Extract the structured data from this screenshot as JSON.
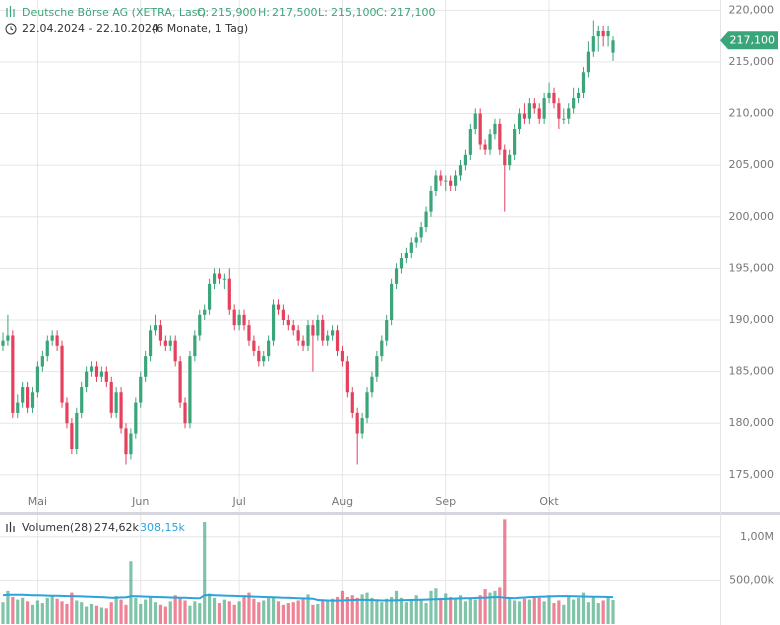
{
  "header": {
    "title": "Deutsche Börse AG (XETRA, Last)",
    "open_label": "O:",
    "open": "215,900",
    "high_label": "H:",
    "high": "217,500",
    "low_label": "L:",
    "low": "215,100",
    "close_label": "C:",
    "close": "217,100",
    "range": "22.04.2024 - 22.10.2024",
    "period": "(6 Monate, 1 Tag)"
  },
  "chart_data": [
    {
      "type": "candlestick",
      "up_color": "#3ba57a",
      "down_color": "#e5405c",
      "grid": true,
      "last_price_label": "217,100",
      "categories": [
        null,
        null,
        null,
        null,
        null,
        null,
        null,
        "Mai",
        null,
        null,
        null,
        null,
        null,
        null,
        null,
        null,
        null,
        null,
        null,
        null,
        null,
        null,
        null,
        null,
        null,
        null,
        null,
        null,
        "Jun",
        null,
        null,
        null,
        null,
        null,
        null,
        null,
        null,
        null,
        null,
        null,
        null,
        null,
        null,
        null,
        null,
        null,
        null,
        null,
        "Jul",
        null,
        null,
        null,
        null,
        null,
        null,
        null,
        null,
        null,
        null,
        null,
        null,
        null,
        null,
        null,
        null,
        null,
        null,
        null,
        null,
        "Aug",
        null,
        null,
        null,
        null,
        null,
        null,
        null,
        null,
        null,
        null,
        null,
        null,
        null,
        null,
        null,
        null,
        null,
        null,
        null,
        null,
        "Sep",
        null,
        null,
        null,
        null,
        null,
        null,
        null,
        null,
        null,
        null,
        null,
        null,
        null,
        null,
        null,
        null,
        null,
        null,
        null,
        null,
        "Okt",
        null,
        null,
        null,
        null,
        null,
        null,
        null,
        null,
        null,
        null,
        null,
        null,
        null
      ],
      "open": [
        187500,
        188000,
        188500,
        181000,
        182000,
        183500,
        181500,
        183000,
        185500,
        186500,
        188000,
        188500,
        187500,
        182000,
        180000,
        177500,
        181000,
        183500,
        185000,
        185500,
        184500,
        185000,
        184000,
        181000,
        183000,
        179500,
        177000,
        179000,
        182000,
        184500,
        186500,
        189000,
        189500,
        188000,
        187500,
        188000,
        186000,
        182000,
        180000,
        186500,
        188500,
        190500,
        191000,
        193500,
        194500,
        194000,
        194000,
        191000,
        189500,
        190500,
        189500,
        188000,
        187000,
        186000,
        186500,
        188000,
        191500,
        191000,
        190000,
        189500,
        189000,
        188000,
        187500,
        189500,
        188500,
        190000,
        188000,
        188500,
        189000,
        187000,
        186000,
        183000,
        181000,
        179000,
        180500,
        183000,
        184500,
        186500,
        188000,
        190000,
        193500,
        195000,
        196000,
        196500,
        197500,
        198000,
        199000,
        200500,
        202500,
        204000,
        203500,
        203500,
        203000,
        204000,
        205000,
        206000,
        208500,
        210000,
        207000,
        206500,
        208000,
        209000,
        206500,
        205000,
        206000,
        208500,
        210000,
        209500,
        211000,
        210500,
        209500,
        211500,
        212000,
        211000,
        209500,
        209500,
        210500,
        211500,
        212000,
        214000,
        216000,
        217500,
        218000,
        217500,
        215900
      ],
      "high": [
        188800,
        190500,
        189000,
        182800,
        184000,
        184000,
        183500,
        186000,
        187000,
        188500,
        189000,
        189000,
        188000,
        182500,
        180500,
        181500,
        184000,
        185500,
        186000,
        186000,
        185500,
        185500,
        184500,
        183500,
        183500,
        180000,
        179500,
        182500,
        185000,
        187000,
        189500,
        190500,
        190000,
        188500,
        188500,
        188500,
        186500,
        182500,
        187000,
        189000,
        191000,
        191500,
        194000,
        195000,
        195000,
        194500,
        195000,
        191500,
        191000,
        191000,
        190000,
        188500,
        187500,
        187000,
        188500,
        192000,
        192000,
        191500,
        190500,
        190000,
        189500,
        188500,
        190000,
        190000,
        190500,
        190500,
        189000,
        189500,
        189500,
        187500,
        186500,
        183500,
        181500,
        181000,
        183500,
        185000,
        187000,
        188500,
        190500,
        194000,
        195500,
        196500,
        197000,
        198000,
        198500,
        199500,
        201000,
        203000,
        204500,
        204500,
        204000,
        204000,
        204500,
        205500,
        206500,
        209000,
        210500,
        210500,
        207500,
        208500,
        209500,
        209500,
        207000,
        206500,
        209000,
        210500,
        211000,
        211500,
        211500,
        211000,
        212000,
        213000,
        212500,
        211500,
        210500,
        211000,
        212500,
        212500,
        214500,
        217000,
        219000,
        218500,
        218500,
        218500,
        217500
      ],
      "low": [
        187000,
        187500,
        180500,
        180500,
        181500,
        181000,
        181000,
        182500,
        185000,
        186000,
        187500,
        187000,
        181500,
        179500,
        177000,
        177000,
        180500,
        183000,
        184500,
        184000,
        184000,
        183500,
        180500,
        180500,
        179000,
        176000,
        176500,
        178500,
        181500,
        184000,
        186000,
        188500,
        187500,
        187000,
        187000,
        185500,
        181500,
        179500,
        179500,
        186000,
        188000,
        190000,
        190500,
        193000,
        193500,
        193000,
        190500,
        189000,
        189000,
        189000,
        187500,
        186500,
        185500,
        185500,
        186000,
        187500,
        190500,
        189500,
        189000,
        188500,
        187500,
        187000,
        187000,
        185000,
        188000,
        187500,
        187500,
        188000,
        186500,
        185500,
        182500,
        180500,
        176000,
        178500,
        180000,
        182500,
        184000,
        186000,
        187500,
        189500,
        193000,
        194500,
        195500,
        196000,
        197000,
        197500,
        198500,
        200000,
        202000,
        203000,
        202500,
        202500,
        202500,
        203500,
        204500,
        205500,
        208000,
        206500,
        206000,
        206000,
        207500,
        206000,
        200500,
        204500,
        205500,
        208000,
        209000,
        209000,
        210000,
        209000,
        209000,
        211000,
        210500,
        208500,
        209000,
        209000,
        210000,
        211000,
        211500,
        213500,
        215500,
        216000,
        216500,
        216500,
        215100
      ],
      "close": [
        188000,
        188500,
        181000,
        182000,
        183500,
        181500,
        183000,
        185500,
        186500,
        188000,
        188500,
        187500,
        182000,
        180000,
        177500,
        181000,
        183500,
        185000,
        185500,
        184500,
        185000,
        184000,
        181000,
        183000,
        179500,
        177000,
        179000,
        182000,
        184500,
        186500,
        189000,
        189500,
        188000,
        187500,
        188000,
        186000,
        182000,
        180000,
        186500,
        188500,
        190500,
        191000,
        193500,
        194500,
        194000,
        194000,
        191000,
        189500,
        190500,
        189500,
        188000,
        187000,
        186000,
        186500,
        188000,
        191500,
        191000,
        190000,
        189500,
        189000,
        188000,
        187500,
        189500,
        188500,
        190000,
        188000,
        188500,
        189000,
        187000,
        186000,
        183000,
        181000,
        179000,
        180500,
        183000,
        184500,
        186500,
        188000,
        190000,
        193500,
        195000,
        196000,
        196500,
        197500,
        198000,
        199000,
        200500,
        202500,
        204000,
        203500,
        203500,
        203000,
        204000,
        205000,
        206000,
        208500,
        210000,
        207000,
        206500,
        208000,
        209000,
        206500,
        205000,
        206000,
        208500,
        210000,
        209500,
        211000,
        210500,
        209500,
        211500,
        212000,
        211000,
        209500,
        209500,
        210500,
        211500,
        212000,
        214000,
        216000,
        217500,
        218000,
        217500,
        218000,
        217100
      ],
      "ylim": [
        171400,
        221000
      ],
      "yticks": [
        {
          "value": 175000,
          "label": "175,000"
        },
        {
          "value": 180000,
          "label": "180,000"
        },
        {
          "value": 185000,
          "label": "185,000"
        },
        {
          "value": 190000,
          "label": "190,000"
        },
        {
          "value": 195000,
          "label": "195,000"
        },
        {
          "value": 200000,
          "label": "200,000"
        },
        {
          "value": 205000,
          "label": "205,000"
        },
        {
          "value": 210000,
          "label": "210,000"
        },
        {
          "value": 215000,
          "label": "215,000"
        },
        {
          "value": 220000,
          "label": "220,000"
        }
      ]
    },
    {
      "type": "volume",
      "title": "Volumen(28)",
      "volume_label": "274,62k",
      "average_label": "308,15k",
      "average_color": "#2ba3dc",
      "volume": [
        250000,
        380000,
        310000,
        280000,
        300000,
        260000,
        220000,
        270000,
        240000,
        300000,
        330000,
        290000,
        260000,
        230000,
        360000,
        270000,
        250000,
        200000,
        230000,
        210000,
        190000,
        180000,
        250000,
        320000,
        280000,
        220000,
        720000,
        300000,
        230000,
        280000,
        310000,
        250000,
        220000,
        200000,
        260000,
        330000,
        300000,
        270000,
        210000,
        260000,
        240000,
        1170000,
        350000,
        300000,
        240000,
        280000,
        260000,
        220000,
        260000,
        330000,
        360000,
        290000,
        250000,
        270000,
        300000,
        310000,
        260000,
        220000,
        240000,
        250000,
        270000,
        300000,
        340000,
        220000,
        230000,
        280000,
        260000,
        290000,
        310000,
        380000,
        310000,
        330000,
        300000,
        340000,
        360000,
        300000,
        270000,
        250000,
        290000,
        310000,
        380000,
        300000,
        250000,
        270000,
        330000,
        280000,
        240000,
        380000,
        410000,
        300000,
        350000,
        310000,
        290000,
        330000,
        260000,
        300000,
        280000,
        330000,
        400000,
        360000,
        380000,
        420000,
        1200000,
        300000,
        270000,
        260000,
        290000,
        280000,
        320000,
        300000,
        260000,
        330000,
        240000,
        270000,
        220000,
        310000,
        280000,
        300000,
        360000,
        250000,
        310000,
        240000,
        270000,
        300000,
        274620
      ],
      "average": [
        330000,
        335000,
        335000,
        335000,
        335000,
        333000,
        330000,
        330000,
        328000,
        326000,
        325000,
        324000,
        322000,
        320000,
        320000,
        318000,
        316000,
        314000,
        312000,
        310000,
        308000,
        305000,
        302000,
        300000,
        305000,
        305000,
        318000,
        318000,
        316000,
        314000,
        312000,
        310000,
        308000,
        306000,
        304000,
        303000,
        302000,
        300000,
        298000,
        296000,
        295000,
        330000,
        332000,
        330000,
        328000,
        326000,
        325000,
        322000,
        320000,
        318000,
        316000,
        314000,
        312000,
        310000,
        308000,
        306000,
        304000,
        302000,
        300000,
        298000,
        296000,
        294000,
        292000,
        290000,
        275000,
        272000,
        270000,
        268000,
        268000,
        270000,
        272000,
        274000,
        276000,
        276000,
        275000,
        274000,
        272000,
        270000,
        270000,
        270000,
        272000,
        273000,
        274000,
        275000,
        276000,
        278000,
        280000,
        282000,
        284000,
        286000,
        288000,
        290000,
        292000,
        294000,
        295000,
        296000,
        298000,
        300000,
        302000,
        305000,
        308000,
        310000,
        300000,
        298000,
        296000,
        300000,
        304000,
        308000,
        310000,
        312000,
        314000,
        316000,
        318000,
        320000,
        320000,
        320000,
        318000,
        316000,
        315000,
        314000,
        313000,
        312000,
        311000,
        310000,
        308150
      ],
      "ylim": [
        0,
        1250000
      ],
      "yticks": [
        {
          "value": 500000,
          "label": "500,00k"
        },
        {
          "value": 1000000,
          "label": "1,00M"
        }
      ]
    }
  ]
}
